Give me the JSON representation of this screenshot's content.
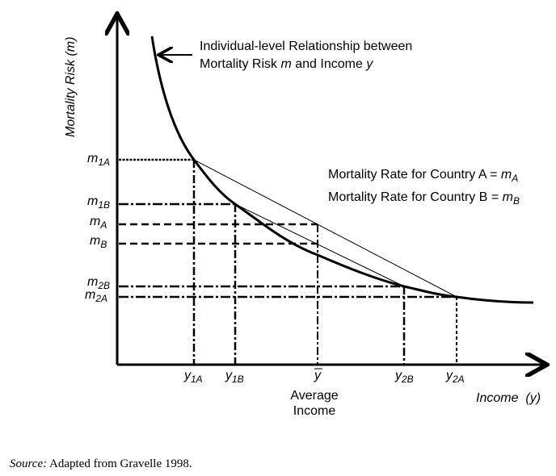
{
  "y_axis_label": "Mortality Risk (m)",
  "x_axis_label": "Income  (y)",
  "curve_annotation": {
    "line1": "Individual-level Relationship between",
    "line2_prefix": "Mortality Risk ",
    "line2_m": "m",
    "line2_mid": " and Income ",
    "line2_y": "y"
  },
  "legend": {
    "a_text": "Mortality Rate for Country A = ",
    "a_sym": "m",
    "a_sub": "A",
    "b_text": "Mortality Rate for Country B = ",
    "b_sym": "m",
    "b_sub": "B"
  },
  "y_ticks": [
    {
      "sym": "m",
      "sub": "1A"
    },
    {
      "sym": "m",
      "sub": "1B"
    },
    {
      "sym": "m",
      "sub": "A"
    },
    {
      "sym": "m",
      "sub": "B"
    },
    {
      "sym": "m",
      "sub": "2B"
    },
    {
      "sym": "m",
      "sub": "2A"
    }
  ],
  "x_ticks": [
    {
      "sym": "y",
      "sub": "1A"
    },
    {
      "sym": "y",
      "sub": "1B"
    },
    {
      "sym": "y",
      "sub": ""
    },
    {
      "sym": "y",
      "sub": "2B"
    },
    {
      "sym": "y",
      "sub": "2A"
    }
  ],
  "average_income_label": {
    "line1": "Average",
    "line2": "Income"
  },
  "source": {
    "label": "Source:",
    "text": " Adapted from Gravelle 1998."
  }
}
